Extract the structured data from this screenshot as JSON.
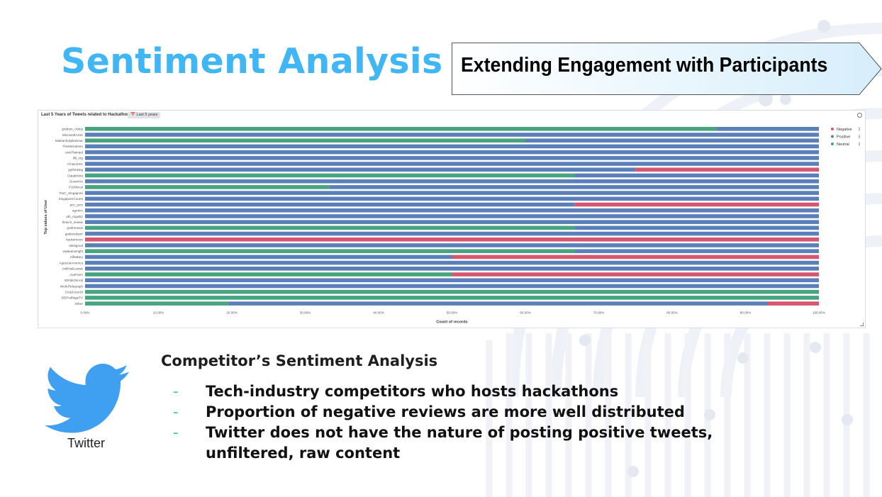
{
  "slide": {
    "title": "Sentiment Analysis",
    "subtitle": "Extending Engagement with Participants",
    "colors": {
      "title": "#41b6f4",
      "accent": "#41b6f4"
    }
  },
  "panel": {
    "title": "Last 5 Years of Tweets related to Hackathon",
    "time_badge": "Last 5 years",
    "settings_icon": "gear-icon",
    "resize_icon": "resize-handle-icon"
  },
  "chart_data": {
    "type": "bar",
    "orientation": "horizontal",
    "stacked": "percentage",
    "xlabel": "Count of records",
    "ylabel": "Top values of User",
    "x_ticks": [
      "0.00%",
      "10.00%",
      "20.00%",
      "30.00%",
      "40.00%",
      "50.00%",
      "60.00%",
      "70.00%",
      "80.00%",
      "90.00%",
      "100.00%"
    ],
    "xlim": [
      0,
      100
    ],
    "legend_position": "right",
    "categories": [
      "graham_cluley",
      "MicrosoftASIA",
      "MaikanhalyBasmar",
      "TheMicheleiro",
      "unicPlainted",
      "lilil_org",
      "FintechSG",
      "pythinking",
      "Databricks",
      "GuvenHo",
      "P100local",
      "PwC_Singapore",
      "SingaporeCourts",
      "pict_acm",
      "agoricn",
      "ath_rogulitz",
      "fintech_review",
      "grafrenesis",
      "gadeveloper",
      "hackernoon",
      "tokisgood",
      "wadeanwright",
      "AlfieBary",
      "AgenziaAmerica",
      "ArtificialLoewe",
      "AxeFarm",
      "ERNKOKAN",
      "WorldTelegraph",
      "CorpCouncil",
      "DDPodhigaiTV",
      "Other"
    ],
    "series": [
      {
        "name": "Negative",
        "color": "#d6566f",
        "values": [
          0,
          0,
          0,
          0,
          0,
          0,
          0,
          25,
          0,
          0,
          0,
          0,
          0,
          33.3,
          0,
          0,
          0,
          0,
          0,
          100,
          0,
          0,
          50,
          0,
          0,
          50,
          0,
          0,
          0,
          0,
          7
        ]
      },
      {
        "name": "Positive",
        "color": "#5b7fb9",
        "values": [
          14,
          100,
          40,
          100,
          100,
          100,
          100,
          75,
          33.3,
          100,
          66.7,
          100,
          100,
          66.7,
          100,
          100,
          100,
          33.3,
          100,
          0,
          100,
          33.3,
          50,
          100,
          100,
          0,
          100,
          100,
          0,
          0,
          73.5
        ]
      },
      {
        "name": "Neutral",
        "color": "#47a47f",
        "values": [
          86,
          0,
          60,
          0,
          0,
          0,
          0,
          0,
          66.7,
          0,
          33.3,
          0,
          0,
          0,
          0,
          0,
          0,
          66.7,
          0,
          0,
          0,
          66.7,
          0,
          0,
          0,
          50,
          0,
          0,
          100,
          100,
          19.5
        ]
      }
    ],
    "series_order_left_to_right": [
      "Neutral",
      "Positive",
      "Negative"
    ]
  },
  "twitter": {
    "icon": "twitter-bird-icon",
    "caption": "Twitter",
    "color": "#3f9ff0"
  },
  "section": {
    "heading": "Competitor’s Sentiment Analysis",
    "dash": "-",
    "bullets": [
      "Tech-industry competitors who hosts hackathons",
      "Proportion of negative reviews are more well distributed",
      "Twitter does not have the nature of posting positive tweets, unfiltered, raw content"
    ]
  }
}
